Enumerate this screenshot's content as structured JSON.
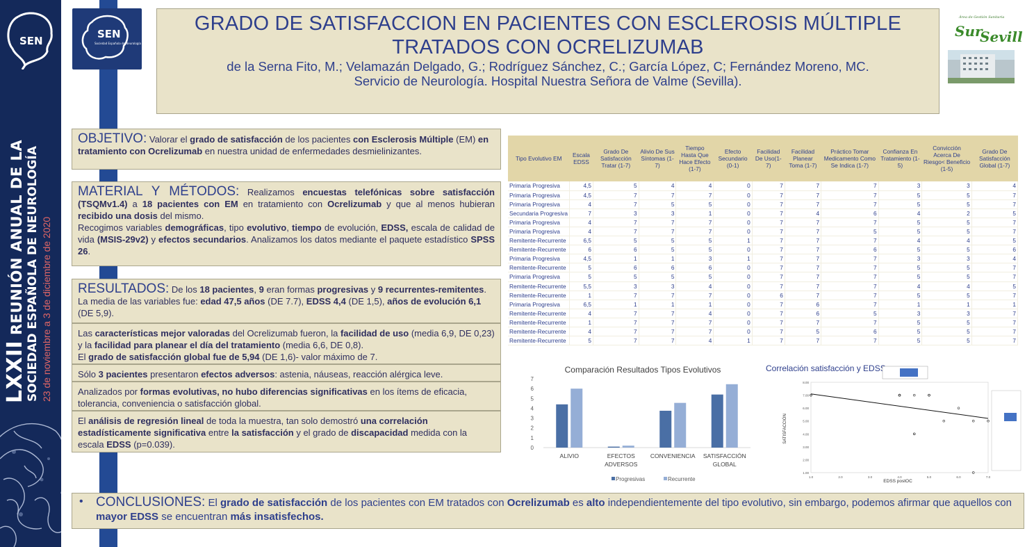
{
  "sidebar": {
    "logo_text": "SEN",
    "line1_num": "LXXII",
    "line1_rest": "REUNIÓN ANUAL DE LA",
    "line2": "SOCIEDAD ESPAÑOLA DE NEUROLOGÍA",
    "line3": "23 de noviembre a 3 de diciembre de 2020"
  },
  "sen_logo": {
    "text": "SEN",
    "subtitle": "Sociedad Española de Neurología"
  },
  "header": {
    "title_line1": "GRADO DE SATISFACCION EN PACIENTES CON ESCLEROSIS MÚLTIPLE",
    "title_line2": "TRATADOS CON OCRELIZUMAB",
    "authors": "de la Serna Fito, M.; Velamazán Delgado, G.; Rodríguez Sánchez, C.;  García López, C; Fernández Moreno, MC.",
    "affiliation": "Servicio de Neurología. Hospital Nuestra Señora de Valme (Sevilla)."
  },
  "sur_logo": {
    "small": "Área de Gestión Sanitaria",
    "big1": "Sur",
    "big2": "Sevilla"
  },
  "objetivo": {
    "head": "OBJETIVO:",
    "t1": " Valorar el ",
    "b1": "grado de satisfacción",
    "t2": " de los pacientes ",
    "b2": "con Esclerosis Múltiple",
    "t3": " (EM) ",
    "b3": "en tratamiento con Ocrelizumab",
    "t4": " en nuestra unidad de enfermedades desmielinizantes."
  },
  "metodos": {
    "head": "MATERIAL Y MÉTODOS:",
    "t1": " Realizamos ",
    "b1": "encuestas telefónicas sobre satisfacción",
    "b1b": "(TSQMv1.4)",
    "t2": " a ",
    "b2": "18 pacientes con EM",
    "t3": " en tratamiento con ",
    "b3": "Ocrelizumab",
    "t4": " y que al menos hubieran ",
    "b4": "recibido una dosis",
    "t5": " del mismo.",
    "t6": "Recogimos variables ",
    "b6": "demográficas",
    "t7": ", tipo ",
    "b7": "evolutivo",
    "t8": ", ",
    "b8": "tiempo",
    "t9": " de evolución, ",
    "b9": "EDSS,",
    "t10": " escala de calidad de vida ",
    "b10": "(MSIS-29v2)",
    "t11": " y ",
    "b11": "efectos secundarios",
    "t12": ". Analizamos los datos mediante el paquete estadístico ",
    "b12": "SPSS 26",
    "t13": "."
  },
  "resultados": {
    "head": "RESULTADOS:",
    "p1_t1": " De los ",
    "p1_b1": "18 pacientes",
    "p1_t2": ", ",
    "p1_b2": "9",
    "p1_t3": " eran formas ",
    "p1_b3": "progresivas",
    "p1_t4": " y ",
    "p1_b4": "9 recurrentes-remitentes",
    "p1_t5": ".",
    "p2_t1": "La media de las variables fue: ",
    "p2_b1": "edad 47,5 años",
    "p2_t2": " (DE 7.7), ",
    "p2_b2": "EDSS 4,4",
    "p2_t3": " (DE 1,5), ",
    "p2_b3": "años de evolución 6,1",
    "p2_t4": " (DE 5,9).",
    "p3_t1": "Las ",
    "p3_b1": "características mejor valoradas",
    "p3_t2": " del Ocrelizumab fueron, la ",
    "p3_b2": "facilidad de uso",
    "p3_t3": " (media 6,9, DE 0,23) y la ",
    "p3_b3": "facilidad para planear el día del tratamiento",
    "p3_t4": " (media 6,6, DE 0,8).",
    "p3_t5": "El ",
    "p3_b5": "grado de satisfacción global fue de 5,94",
    "p3_t6": " (DE 1,6)- valor máximo de 7.",
    "p4_t1": "Sólo ",
    "p4_b1": "3 pacientes",
    "p4_t2": " presentaron ",
    "p4_b2": "efectos adversos",
    "p4_t3": ": astenia, náuseas, reacción alérgica leve.",
    "p5_t1": "Analizados por ",
    "p5_b1": "formas evolutivas, no hubo diferencias significativas",
    "p5_t2": " en los ítems de eficacia, tolerancia, conveniencia o satisfacción global.",
    "p6_t1": "El ",
    "p6_b1": "análisis de regresión lineal",
    "p6_t2": " de toda la muestra, tan solo demostró ",
    "p6_b2": "una correlación estadísticamente significativa",
    "p6_t3": " entre ",
    "p6_b3": "la satisfacción",
    "p6_t4": " y el grado de ",
    "p6_b4": "discapacidad",
    "p6_t5": " medida con la escala ",
    "p6_b5": "EDSS",
    "p6_t6": " (p=0.039)."
  },
  "table": {
    "headers": [
      "Tipo Evolutivo EM",
      "Escala EDSS",
      "Grado De Satisfacción Tratar (1-7)",
      "Alivio De Sus Síntomas (1-7)",
      "Tiempo Hasta Que Hace Efecto (1-7)",
      "Efecto Secundario (0-1)",
      "Facilidad De Uso(1-7)",
      "Facilidad Planear Toma (1-7)",
      "Práctico Tomar Medicamento Como Se Indica (1-7)",
      "Confianza En Tratamiento (1-5)",
      "Convicción Acerca De Riesgo< Beneficio (1-5)",
      "Grado De Satisfacción Global (1-7)"
    ],
    "rows": [
      [
        "Primaria Progresiva",
        "4,5",
        "5",
        "4",
        "4",
        "0",
        "7",
        "7",
        "7",
        "3",
        "3",
        "4"
      ],
      [
        "Primaria Progresiva",
        "4,5",
        "7",
        "7",
        "7",
        "0",
        "7",
        "7",
        "7",
        "5",
        "5",
        "7"
      ],
      [
        "Primaria Progresiva",
        "4",
        "7",
        "5",
        "5",
        "0",
        "7",
        "7",
        "7",
        "5",
        "5",
        "7"
      ],
      [
        "Secundaria Progresiva",
        "7",
        "3",
        "3",
        "1",
        "0",
        "7",
        "4",
        "6",
        "4",
        "2",
        "5"
      ],
      [
        "Primaria Progresiva",
        "4",
        "7",
        "7",
        "7",
        "0",
        "7",
        "7",
        "7",
        "5",
        "5",
        "7"
      ],
      [
        "Primaria Progresiva",
        "4",
        "7",
        "7",
        "7",
        "0",
        "7",
        "7",
        "5",
        "5",
        "5",
        "7"
      ],
      [
        "Remitente-Recurrente",
        "6,5",
        "5",
        "5",
        "5",
        "1",
        "7",
        "7",
        "7",
        "4",
        "4",
        "5"
      ],
      [
        "Remitente-Recurrente",
        "6",
        "6",
        "5",
        "5",
        "0",
        "7",
        "7",
        "6",
        "5",
        "5",
        "6"
      ],
      [
        "Primaria Progresiva",
        "4,5",
        "1",
        "1",
        "3",
        "1",
        "7",
        "7",
        "7",
        "3",
        "3",
        "4"
      ],
      [
        "Remitente-Recurrente",
        "5",
        "6",
        "6",
        "6",
        "0",
        "7",
        "7",
        "7",
        "5",
        "5",
        "7"
      ],
      [
        "Primaria Progresiva",
        "5",
        "5",
        "5",
        "5",
        "0",
        "7",
        "7",
        "7",
        "5",
        "5",
        "7"
      ],
      [
        "Remitente-Recurrente",
        "5,5",
        "3",
        "3",
        "4",
        "0",
        "7",
        "7",
        "7",
        "4",
        "4",
        "5"
      ],
      [
        "Remitente-Recurrente",
        "1",
        "7",
        "7",
        "7",
        "0",
        "6",
        "7",
        "7",
        "5",
        "5",
        "7"
      ],
      [
        "Primaria Progresiva",
        "6,5",
        "1",
        "1",
        "1",
        "0",
        "7",
        "6",
        "7",
        "1",
        "1",
        "1"
      ],
      [
        "Remitente-Recurrente",
        "4",
        "7",
        "7",
        "4",
        "0",
        "7",
        "6",
        "5",
        "3",
        "3",
        "7"
      ],
      [
        "Remitente-Recurrente",
        "1",
        "7",
        "7",
        "7",
        "0",
        "7",
        "7",
        "7",
        "5",
        "5",
        "7"
      ],
      [
        "Remitente-Recurrente",
        "4",
        "7",
        "7",
        "7",
        "0",
        "7",
        "5",
        "6",
        "5",
        "5",
        "7"
      ],
      [
        "Remitente-Recurrente",
        "5",
        "7",
        "7",
        "4",
        "1",
        "7",
        "7",
        "7",
        "5",
        "5",
        "7"
      ]
    ]
  },
  "chart_data": [
    {
      "type": "bar",
      "title": "Comparación Resultados Tipos Evolutivos",
      "categories": [
        "ALIVIO",
        "EFECTOS ADVERSOS",
        "CONVENIENCIA",
        "SATISFACCIÓN GLOBAL"
      ],
      "series": [
        {
          "name": "Progresivas",
          "color": "#4a6fa5",
          "values": [
            4.4,
            0.1,
            3.75,
            5.4
          ]
        },
        {
          "name": "Recurrente",
          "color": "#95aed6",
          "values": [
            6.0,
            0.2,
            4.55,
            6.45
          ]
        }
      ],
      "ylim": [
        0,
        7
      ],
      "yticks": [
        "0",
        "1",
        "2",
        "3",
        "4",
        "5",
        "6",
        "7"
      ],
      "legend": "bottom"
    },
    {
      "type": "scatter",
      "title": "Correlación satisfacción y EDSS",
      "xlabel": "EDSS postOC",
      "ylabel": "SATISFACCIÓN",
      "x": [
        4.5,
        4.5,
        4,
        7,
        4,
        4,
        6.5,
        6,
        4.5,
        5,
        5,
        5.5,
        1,
        6.5,
        4,
        1,
        4,
        5
      ],
      "y": [
        4,
        7,
        7,
        5,
        7,
        7,
        5,
        6,
        4,
        7,
        7,
        5,
        7,
        1,
        7,
        7,
        7,
        7
      ],
      "xlim": [
        1,
        7
      ],
      "ylim": [
        1,
        8
      ],
      "trend": {
        "x": [
          1,
          7
        ],
        "y": [
          7.1,
          5.2
        ]
      },
      "xticks": [
        "1.0",
        "2.0",
        "3.0",
        "4.0",
        "5.0",
        "6.0",
        "7.0"
      ],
      "yticks": [
        "1.00",
        "2.00",
        "3.00",
        "4.00",
        "5.00",
        "6.00",
        "7.00",
        "8.00"
      ]
    }
  ],
  "conclusiones": {
    "head": "CONCLUSIONES:",
    "t1": " El ",
    "b1": "grado de satisfacción",
    "t2": " de los pacientes con EM tratados con ",
    "b2": "Ocrelizumab",
    "t3": " es ",
    "b3": "alto",
    "t4": " independientemente del tipo evolutivo, sin embargo, podemos afirmar que aquellos con ",
    "b4": "mayor EDSS",
    "t5": " se encuentran ",
    "b5": "más insatisfechos."
  }
}
